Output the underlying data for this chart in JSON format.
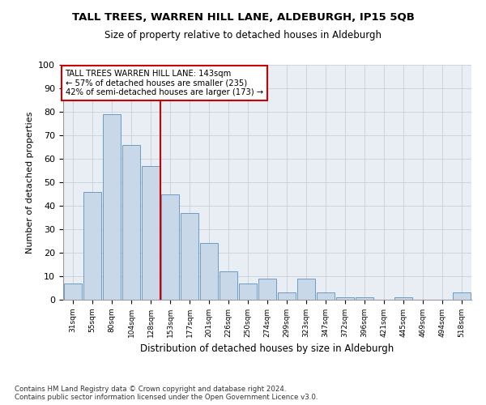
{
  "title": "TALL TREES, WARREN HILL LANE, ALDEBURGH, IP15 5QB",
  "subtitle": "Size of property relative to detached houses in Aldeburgh",
  "xlabel": "Distribution of detached houses by size in Aldeburgh",
  "ylabel": "Number of detached properties",
  "categories": [
    "31sqm",
    "55sqm",
    "80sqm",
    "104sqm",
    "128sqm",
    "153sqm",
    "177sqm",
    "201sqm",
    "226sqm",
    "250sqm",
    "274sqm",
    "299sqm",
    "323sqm",
    "347sqm",
    "372sqm",
    "396sqm",
    "421sqm",
    "445sqm",
    "469sqm",
    "494sqm",
    "518sqm"
  ],
  "values": [
    7,
    46,
    79,
    66,
    57,
    45,
    37,
    24,
    12,
    7,
    9,
    3,
    9,
    3,
    1,
    1,
    0,
    1,
    0,
    0,
    3
  ],
  "bar_color": "#c8d8e8",
  "bar_edge_color": "#5a90c0",
  "vline_x": 4.5,
  "vline_color": "#cc0000",
  "annotation_text": "TALL TREES WARREN HILL LANE: 143sqm\n← 57% of detached houses are smaller (235)\n42% of semi-detached houses are larger (173) →",
  "annotation_box_color": "#ffffff",
  "annotation_box_edge": "#cc0000",
  "ylim": [
    0,
    100
  ],
  "yticks": [
    0,
    10,
    20,
    30,
    40,
    50,
    60,
    70,
    80,
    90,
    100
  ],
  "grid_color": "#c8d0d8",
  "background_color": "#e8eef4",
  "footnote": "Contains HM Land Registry data © Crown copyright and database right 2024.\nContains public sector information licensed under the Open Government Licence v3.0."
}
